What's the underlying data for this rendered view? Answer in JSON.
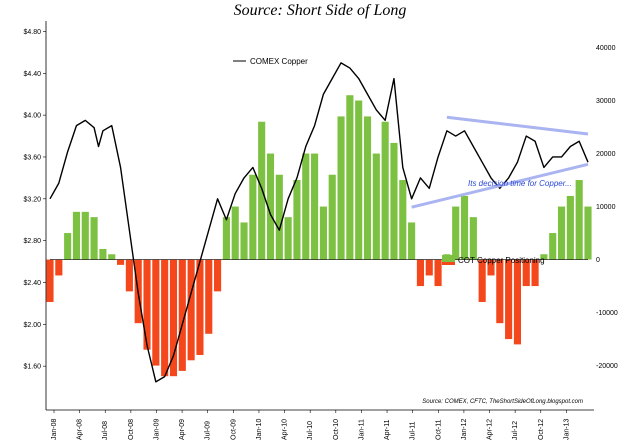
{
  "chart_data": {
    "type": "line",
    "title": "Source: Short Side of Long",
    "annotation": "Its decision time for Copper...",
    "source_note": "Source: COMEX, CFTC, TheShortSideOfLong.blogspot.com",
    "x_tick_labels": [
      "Jan-08",
      "Apr-08",
      "Jul-08",
      "Oct-08",
      "Jan-09",
      "Apr-09",
      "Jul-09",
      "Oct-09",
      "Jan-10",
      "Apr-10",
      "Jul-10",
      "Oct-10",
      "Jan-11",
      "Apr-11",
      "Jul-11",
      "Oct-11",
      "Jan-12",
      "Apr-12",
      "Jul-12",
      "Oct-12",
      "Jan-13"
    ],
    "y_left": {
      "ticks": [
        1.6,
        2.0,
        2.4,
        2.8,
        3.2,
        3.6,
        4.0,
        4.4,
        4.8
      ],
      "tick_labels": [
        "$1.60",
        "$2.00",
        "$2.40",
        "$2.80",
        "$3.20",
        "$3.60",
        "$4.00",
        "$4.40",
        "$4.80"
      ],
      "range": [
        1.2,
        4.9
      ]
    },
    "y_right": {
      "ticks": [
        -20000,
        -10000,
        0,
        10000,
        20000,
        30000,
        40000
      ],
      "tick_labels": [
        "-20000",
        "-10000",
        "0",
        "10000",
        "20000",
        "30000",
        "40000"
      ],
      "range": [
        -28000,
        45000
      ]
    },
    "colors": {
      "price_line": "#000000",
      "positive": "#7dc142",
      "negative": "#f4471c",
      "trendline": "#a9b4f0",
      "annotation": "#2b47d6"
    },
    "series": [
      {
        "name": "COMEX Copper",
        "axis": "left",
        "x": [
          0,
          1,
          2,
          3,
          4,
          5,
          5.5,
          6,
          7,
          8,
          9,
          10,
          11,
          12,
          13,
          14,
          15,
          16,
          17,
          18,
          19,
          20,
          21,
          22,
          23,
          24,
          25,
          26,
          27,
          28,
          29,
          30,
          31,
          32,
          33,
          34,
          35,
          36,
          37,
          38,
          39,
          40,
          41,
          42,
          43,
          44,
          45,
          46,
          47,
          48,
          49,
          50,
          51,
          52,
          53,
          54,
          55,
          56,
          57,
          58,
          59,
          60,
          61
        ],
        "values": [
          3.2,
          3.35,
          3.65,
          3.9,
          3.95,
          3.88,
          3.7,
          3.85,
          3.9,
          3.5,
          2.9,
          2.3,
          1.8,
          1.45,
          1.5,
          1.7,
          2.0,
          2.3,
          2.6,
          2.9,
          3.2,
          3.0,
          3.25,
          3.4,
          3.5,
          3.3,
          3.05,
          2.9,
          3.2,
          3.4,
          3.7,
          3.9,
          4.2,
          4.35,
          4.5,
          4.45,
          4.35,
          4.2,
          4.05,
          3.95,
          4.35,
          3.5,
          3.2,
          3.4,
          3.3,
          3.6,
          3.85,
          3.8,
          3.85,
          3.7,
          3.55,
          3.4,
          3.3,
          3.4,
          3.55,
          3.8,
          3.75,
          3.5,
          3.6,
          3.6,
          3.7,
          3.75,
          3.55
        ]
      },
      {
        "name": "COT Copper Positioning",
        "axis": "right",
        "x": [
          0,
          1,
          2,
          3,
          4,
          5,
          6,
          7,
          8,
          9,
          10,
          11,
          12,
          13,
          14,
          15,
          16,
          17,
          18,
          19,
          20,
          21,
          22,
          23,
          24,
          25,
          26,
          27,
          28,
          29,
          30,
          31,
          32,
          33,
          34,
          35,
          36,
          37,
          38,
          39,
          40,
          41,
          42,
          43,
          44,
          45,
          46,
          47,
          48,
          49,
          50,
          51,
          52,
          53,
          54,
          55,
          56,
          57,
          58,
          59,
          60,
          61
        ],
        "values": [
          -8000,
          -3000,
          5000,
          9000,
          9000,
          8000,
          2000,
          1000,
          -1000,
          -6000,
          -12000,
          -17000,
          -20000,
          -22000,
          -22000,
          -21000,
          -19000,
          -18000,
          -14000,
          -6000,
          8000,
          10000,
          7000,
          16000,
          26000,
          20000,
          16000,
          8000,
          15000,
          20000,
          20000,
          10000,
          16000,
          27000,
          31000,
          30000,
          27000,
          20000,
          26000,
          22000,
          15000,
          7000,
          -5000,
          -3000,
          -5000,
          1000,
          10000,
          12000,
          8000,
          -8000,
          -3000,
          -12000,
          -15000,
          -16000,
          -5000,
          -5000,
          1000,
          5000,
          10000,
          12000,
          15000,
          10000
        ]
      }
    ]
  },
  "legend": {
    "price_label": "COMEX Copper",
    "cot_label": "COT Copper Positioning"
  }
}
